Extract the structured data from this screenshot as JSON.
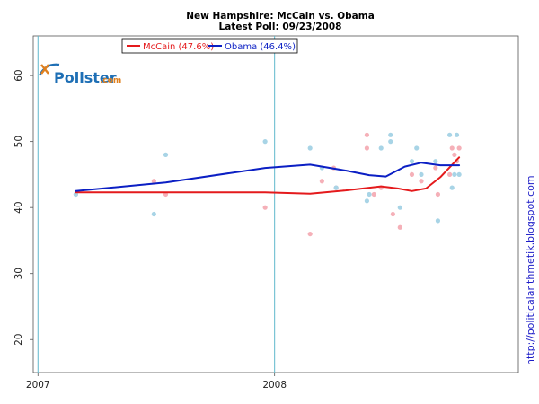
{
  "chart_data": {
    "type": "scatter",
    "title": "New Hampshire: McCain vs. Obama",
    "subtitle": "Latest Poll: 09/23/2008",
    "ylim": [
      15,
      66
    ],
    "xlim": [
      2006.98,
      2009.03
    ],
    "yticks": [
      20,
      30,
      40,
      50,
      60
    ],
    "xticks": [
      {
        "value": 2007.0,
        "label": "2007"
      },
      {
        "value": 2008.0,
        "label": "2008"
      }
    ],
    "year_lines": [
      2007.0,
      2008.0
    ],
    "series": [
      {
        "name": "McCain",
        "legend_label": "McCain (47.6%)",
        "color": "#e41a1c",
        "point_color": "#f5b0b8",
        "points": [
          [
            2007.16,
            42
          ],
          [
            2007.49,
            44
          ],
          [
            2007.54,
            42
          ],
          [
            2007.96,
            40
          ],
          [
            2008.15,
            36
          ],
          [
            2008.2,
            44
          ],
          [
            2008.25,
            46
          ],
          [
            2008.26,
            43
          ],
          [
            2008.39,
            51
          ],
          [
            2008.39,
            49
          ],
          [
            2008.42,
            42
          ],
          [
            2008.45,
            43
          ],
          [
            2008.5,
            39
          ],
          [
            2008.53,
            37
          ],
          [
            2008.58,
            45
          ],
          [
            2008.62,
            44
          ],
          [
            2008.68,
            46
          ],
          [
            2008.69,
            42
          ],
          [
            2008.74,
            45
          ],
          [
            2008.75,
            49
          ],
          [
            2008.78,
            49
          ],
          [
            2008.77,
            47
          ],
          [
            2008.76,
            48
          ]
        ],
        "trend": [
          [
            2007.16,
            42.3
          ],
          [
            2007.5,
            42.3
          ],
          [
            2007.96,
            42.3
          ],
          [
            2008.15,
            42.1
          ],
          [
            2008.3,
            42.6
          ],
          [
            2008.45,
            43.2
          ],
          [
            2008.52,
            42.9
          ],
          [
            2008.58,
            42.5
          ],
          [
            2008.64,
            42.9
          ],
          [
            2008.7,
            44.6
          ],
          [
            2008.78,
            47.6
          ]
        ]
      },
      {
        "name": "Obama",
        "legend_label": "Obama (46.4%)",
        "color": "#0b1fc4",
        "point_color": "#a8d4e6",
        "points": [
          [
            2007.16,
            42
          ],
          [
            2007.49,
            39
          ],
          [
            2007.54,
            48
          ],
          [
            2007.96,
            50
          ],
          [
            2008.15,
            49
          ],
          [
            2008.2,
            46
          ],
          [
            2008.26,
            43
          ],
          [
            2008.39,
            41
          ],
          [
            2008.4,
            42
          ],
          [
            2008.45,
            49
          ],
          [
            2008.49,
            51
          ],
          [
            2008.49,
            50
          ],
          [
            2008.53,
            40
          ],
          [
            2008.58,
            47
          ],
          [
            2008.6,
            49
          ],
          [
            2008.62,
            45
          ],
          [
            2008.68,
            47
          ],
          [
            2008.69,
            38
          ],
          [
            2008.74,
            51
          ],
          [
            2008.75,
            43
          ],
          [
            2008.76,
            45
          ],
          [
            2008.77,
            51
          ],
          [
            2008.78,
            45
          ]
        ],
        "trend": [
          [
            2007.16,
            42.5
          ],
          [
            2007.54,
            43.8
          ],
          [
            2007.96,
            46.0
          ],
          [
            2008.15,
            46.5
          ],
          [
            2008.3,
            45.6
          ],
          [
            2008.4,
            44.9
          ],
          [
            2008.47,
            44.7
          ],
          [
            2008.55,
            46.2
          ],
          [
            2008.62,
            46.8
          ],
          [
            2008.7,
            46.4
          ],
          [
            2008.78,
            46.4
          ]
        ]
      }
    ]
  },
  "branding": {
    "logo_name": "Pollster",
    "logo_suffix": ".com",
    "credit": "http://politicalarithmetik.blogspot.com"
  }
}
